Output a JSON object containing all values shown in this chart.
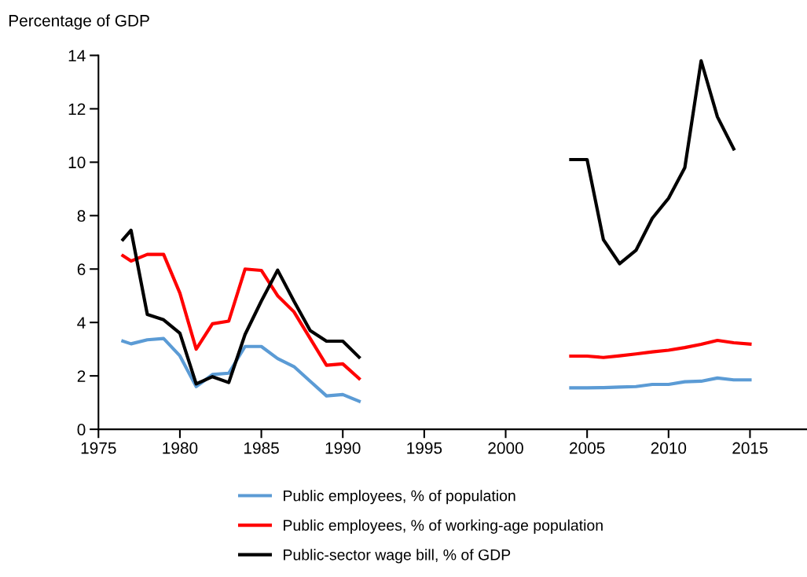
{
  "chart_data": {
    "type": "line",
    "ylabel": "Percentage of GDP",
    "xlim": [
      1975,
      2018.5
    ],
    "xticks": [
      1975,
      1980,
      1985,
      1990,
      1995,
      2000,
      2005,
      2010,
      2015
    ],
    "ylim": [
      0,
      14
    ],
    "yticks": [
      0,
      2,
      4,
      6,
      8,
      10,
      12,
      14
    ],
    "grid": false,
    "legend": "bottom",
    "marker": "none",
    "line_style": "solid",
    "series": [
      {
        "name": "Public employees, % of population",
        "color": "#5b9bd5",
        "x": [
          1976.5,
          1977,
          1978,
          1979,
          1980,
          1981,
          1982,
          1983,
          1984,
          1985,
          1986,
          1987,
          1988,
          1989,
          1990,
          1991,
          1992,
          2004,
          2005,
          2006,
          2007,
          2008,
          2009,
          2010,
          2011,
          2012,
          2013,
          2014,
          2015
        ],
        "values": [
          3.3,
          3.2,
          3.35,
          3.4,
          2.75,
          1.6,
          2.05,
          2.1,
          3.1,
          3.1,
          2.65,
          2.35,
          1.8,
          1.25,
          1.3,
          1.05,
          null,
          1.55,
          1.55,
          1.56,
          1.58,
          1.6,
          1.68,
          1.68,
          1.78,
          1.8,
          1.92,
          1.85,
          1.85
        ]
      },
      {
        "name": "Public employees, % of working-age population",
        "color": "#ff0000",
        "x": [
          1976.5,
          1977,
          1978,
          1979,
          1980,
          1981,
          1982,
          1983,
          1984,
          1985,
          1986,
          1987,
          1988,
          1989,
          1990,
          1991,
          1992,
          2004,
          2005,
          2006,
          2007,
          2008,
          2009,
          2010,
          2011,
          2012,
          2013,
          2014,
          2015
        ],
        "values": [
          6.5,
          6.3,
          6.55,
          6.55,
          5.1,
          3.0,
          3.95,
          4.05,
          6.0,
          5.95,
          5.0,
          4.4,
          3.4,
          2.4,
          2.45,
          1.9,
          null,
          2.74,
          2.74,
          2.69,
          2.75,
          2.82,
          2.9,
          2.96,
          3.06,
          3.18,
          3.33,
          3.24,
          3.19
        ]
      },
      {
        "name": "Public-sector wage bill, % of GDP",
        "color": "#000000",
        "x": [
          1976.5,
          1977,
          1978,
          1979,
          1980,
          1981,
          1982,
          1983,
          1984,
          1985,
          1986,
          1987,
          1988,
          1989,
          1990,
          1991,
          1992,
          2004,
          2005,
          2006,
          2007,
          2008,
          2009,
          2010,
          2011,
          2012,
          2013,
          2014
        ],
        "values": [
          7.1,
          7.45,
          4.3,
          4.1,
          3.6,
          1.7,
          1.97,
          1.75,
          3.55,
          4.8,
          5.96,
          4.8,
          3.7,
          3.3,
          3.3,
          2.7,
          null,
          10.1,
          10.1,
          7.1,
          6.2,
          6.7,
          7.9,
          8.65,
          9.8,
          13.8,
          11.7,
          10.5
        ]
      }
    ]
  }
}
